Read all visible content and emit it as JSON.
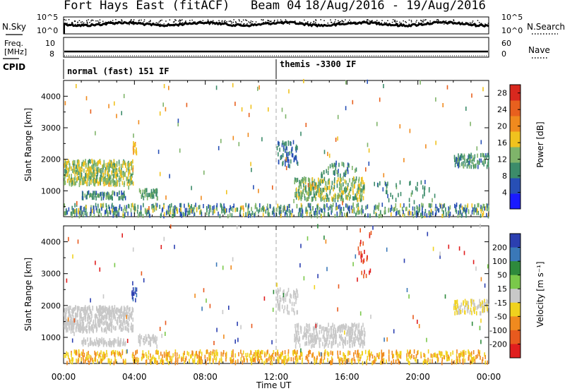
{
  "header": {
    "title": "Fort Hays East (fitACF)",
    "beam": "Beam 04",
    "date_range": "18/Aug/2016 - 19/Aug/2016"
  },
  "side_labels": {
    "nsky": "N.Sky",
    "nsearch": "N.Search",
    "freq": "Freq.",
    "mhz": "[MHz]",
    "nave": "Nave",
    "cpid": "CPID"
  },
  "noise_panel": {
    "left_ticks": [
      "10^5",
      "10^0"
    ],
    "right_ticks": [
      "10^5",
      "10^0"
    ]
  },
  "freq_panel": {
    "left_ticks": [
      "10",
      "8"
    ],
    "right_ticks": [
      "60",
      "0"
    ]
  },
  "cpid_modes": [
    {
      "label": "normal (fast) 151 IF",
      "start_hour": 0
    },
    {
      "label": "themis -3300 IF",
      "start_hour": 12
    }
  ],
  "chart_data": [
    {
      "type": "heatmap",
      "name": "power",
      "ylabel": "Slant Range [km]",
      "yticks": [
        "1000",
        "2000",
        "3000",
        "4000"
      ],
      "ylim": [
        180,
        4500
      ],
      "xlim": [
        0,
        24
      ],
      "colorbar_label": "Power [dB]",
      "colorbar_ticks": [
        "4",
        "8",
        "12",
        "16",
        "20",
        "24",
        "28"
      ],
      "colorbar_range": [
        0,
        30
      ],
      "colors": [
        "#1a1aff",
        "#274fb5",
        "#3c8c6a",
        "#7fb46a",
        "#f0c21e",
        "#f08a1e",
        "#e8601e",
        "#d8281e"
      ],
      "regions": [
        {
          "t": [
            0.0,
            3.9
          ],
          "r": [
            1180,
            1950
          ],
          "v": [
            10,
            18
          ],
          "n": 460
        },
        {
          "t": [
            1.0,
            3.5
          ],
          "r": [
            750,
            950
          ],
          "v": [
            6,
            14
          ],
          "n": 80
        },
        {
          "t": [
            3.9,
            4.1
          ],
          "r": [
            2150,
            2550
          ],
          "v": [
            16,
            20
          ],
          "n": 12
        },
        {
          "t": [
            4.2,
            5.3
          ],
          "r": [
            750,
            1050
          ],
          "v": [
            8,
            14
          ],
          "n": 40
        },
        {
          "t": [
            0.0,
            24.0
          ],
          "r": [
            190,
            560
          ],
          "v": [
            4,
            16
          ],
          "n": 700
        },
        {
          "t": [
            12.0,
            13.2
          ],
          "r": [
            1750,
            2550
          ],
          "v": [
            4,
            10
          ],
          "n": 60
        },
        {
          "t": [
            13.0,
            17.0
          ],
          "r": [
            700,
            1400
          ],
          "v": [
            8,
            18
          ],
          "n": 300
        },
        {
          "t": [
            14.5,
            16.5
          ],
          "r": [
            1450,
            1900
          ],
          "v": [
            6,
            14
          ],
          "n": 45
        },
        {
          "t": [
            22.0,
            24.0
          ],
          "r": [
            1750,
            2150
          ],
          "v": [
            6,
            14
          ],
          "n": 90
        },
        {
          "t": [
            17.5,
            21.0
          ],
          "r": [
            700,
            1300
          ],
          "v": [
            6,
            12
          ],
          "n": 40
        },
        {
          "t": [
            0.0,
            24.0
          ],
          "r": [
            400,
            4500
          ],
          "v": [
            4,
            26
          ],
          "n": 110
        }
      ]
    },
    {
      "type": "heatmap",
      "name": "velocity",
      "ylabel": "Slant Range [km]",
      "yticks": [
        "1000",
        "2000",
        "3000",
        "4000"
      ],
      "ylim": [
        180,
        4500
      ],
      "xlim": [
        0,
        24
      ],
      "xlabel": "Time UT",
      "xticks": [
        "00:00",
        "04:00",
        "08:00",
        "12:00",
        "16:00",
        "20:00",
        "00:00"
      ],
      "colorbar_label": "Velocity [m s⁻¹]",
      "colorbar_ticks": [
        "200",
        "100",
        "50",
        "15",
        "-15",
        "-50",
        "-100",
        "-200"
      ],
      "colors": [
        "#2b3fb0",
        "#3a78b8",
        "#2e8a3c",
        "#7ac84a",
        "#c8c8c8",
        "#f0d21e",
        "#f08a1e",
        "#e85a1e",
        "#e01e1e"
      ],
      "regions": [
        {
          "t": [
            0.0,
            3.9
          ],
          "r": [
            1180,
            1950
          ],
          "c": [
            4,
            4
          ],
          "n": 460
        },
        {
          "t": [
            1.0,
            3.5
          ],
          "r": [
            750,
            950
          ],
          "c": [
            4,
            4
          ],
          "n": 80
        },
        {
          "t": [
            3.8,
            4.1
          ],
          "r": [
            2150,
            2550
          ],
          "c": [
            0,
            1
          ],
          "n": 12
        },
        {
          "t": [
            4.2,
            5.3
          ],
          "r": [
            750,
            1050
          ],
          "c": [
            4,
            4
          ],
          "n": 40
        },
        {
          "t": [
            0.0,
            24.0
          ],
          "r": [
            190,
            560
          ],
          "c": [
            5,
            6
          ],
          "n": 700
        },
        {
          "t": [
            12.0,
            13.2
          ],
          "r": [
            1750,
            2550
          ],
          "c": [
            4,
            4
          ],
          "n": 60
        },
        {
          "t": [
            13.0,
            17.0
          ],
          "r": [
            700,
            1400
          ],
          "c": [
            4,
            4
          ],
          "n": 300
        },
        {
          "t": [
            22.0,
            24.0
          ],
          "r": [
            1750,
            2150
          ],
          "c": [
            4,
            5
          ],
          "n": 90
        },
        {
          "t": [
            16.5,
            17.3
          ],
          "r": [
            2600,
            4400
          ],
          "c": [
            7,
            8
          ],
          "n": 25
        },
        {
          "t": [
            0.0,
            24.0
          ],
          "r": [
            400,
            4500
          ],
          "c": [
            0,
            8
          ],
          "n": 110
        }
      ]
    }
  ]
}
